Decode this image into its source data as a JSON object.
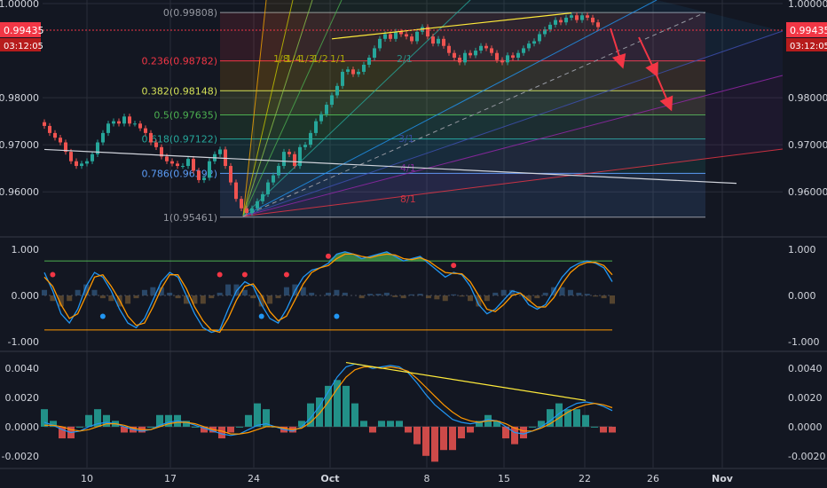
{
  "chart_data": [
    {
      "type": "candlestick",
      "title": "",
      "price_axis": {
        "ticks": [
          "1.00000",
          "0.98000",
          "0.97000",
          "0.96000"
        ],
        "range": [
          0.9525,
          1.0
        ]
      },
      "current_price": {
        "value": "0.99435",
        "countdown": "03:12:05",
        "color": "#f23645"
      },
      "time_axis": {
        "labels": [
          "10",
          "17",
          "24",
          "Oct",
          "8",
          "15",
          "22",
          "26",
          "Nov"
        ]
      },
      "series": [
        {
          "name": "Price (approx. close)",
          "values": [
            0.974,
            0.9725,
            0.9715,
            0.9705,
            0.9685,
            0.9665,
            0.9655,
            0.966,
            0.9665,
            0.968,
            0.9705,
            0.9725,
            0.9745,
            0.975,
            0.9745,
            0.976,
            0.9745,
            0.9745,
            0.9735,
            0.9725,
            0.9705,
            0.9695,
            0.9675,
            0.9665,
            0.966,
            0.9655,
            0.9655,
            0.967,
            0.9645,
            0.9625,
            0.963,
            0.9665,
            0.968,
            0.969,
            0.9655,
            0.962,
            0.9585,
            0.9565,
            0.9555,
            0.9565,
            0.958,
            0.9595,
            0.962,
            0.9635,
            0.9655,
            0.9685,
            0.968,
            0.9655,
            0.9695,
            0.97,
            0.9725,
            0.975,
            0.9765,
            0.9785,
            0.9805,
            0.9825,
            0.9855,
            0.986,
            0.985,
            0.9855,
            0.987,
            0.9885,
            0.9905,
            0.9925,
            0.9935,
            0.9925,
            0.994,
            0.9935,
            0.993,
            0.992,
            0.994,
            0.995,
            0.993,
            0.9915,
            0.9925,
            0.991,
            0.9895,
            0.9885,
            0.9875,
            0.9895,
            0.989,
            0.99,
            0.991,
            0.9905,
            0.9895,
            0.988,
            0.9875,
            0.989,
            0.9885,
            0.9895,
            0.9905,
            0.9915,
            0.992,
            0.9935,
            0.9945,
            0.9955,
            0.9965,
            0.996,
            0.997,
            0.9975,
            0.9965,
            0.9975,
            0.997,
            0.996,
            0.995
          ]
        }
      ],
      "trendlines": [
        {
          "name": "upper-divergence",
          "from": [
            54,
            0.9925
          ],
          "to": [
            99,
            0.998
          ],
          "color": "#ffeb3b"
        },
        {
          "name": "long-trend",
          "from": [
            0,
            0.969
          ],
          "to": [
            130,
            0.9618
          ],
          "color": "#d1d4dc"
        }
      ],
      "fibonacci_retracement": {
        "levels": [
          {
            "label": "0(0.99808)",
            "value": 0.99808,
            "color": "#9598a1"
          },
          {
            "label": "0.236(0.98782)",
            "value": 0.98782,
            "color": "#f23645"
          },
          {
            "label": "0.382(0.98148)",
            "value": 0.98148,
            "color": "#d4e157"
          },
          {
            "label": "0.5(0.97635)",
            "value": 0.97635,
            "color": "#4caf50"
          },
          {
            "label": "0.618(0.97122)",
            "value": 0.97122,
            "color": "#26a69a"
          },
          {
            "label": "0.786(0.96392)",
            "value": 0.96392,
            "color": "#5b9cf6"
          },
          {
            "label": "1(0.95461)",
            "value": 0.95461,
            "color": "#9598a1"
          }
        ]
      },
      "gann_fan_labels": [
        "1/8",
        "1/4",
        "1/3",
        "1/2",
        "1/1",
        "2/1",
        "3/1",
        "4/1",
        "8/1"
      ],
      "forecast_arrows": 3
    },
    {
      "type": "line",
      "title": "",
      "axis": {
        "ticks": [
          "1.000",
          "0.000",
          "-1.000"
        ],
        "range": [
          -1.1,
          1.1
        ]
      },
      "levels": [
        0.75,
        -0.75
      ],
      "series": [
        {
          "name": "fast",
          "color": "#2196f3",
          "values": [
            0.5,
            0.1,
            -0.4,
            -0.6,
            -0.3,
            0.2,
            0.5,
            0.4,
            0.1,
            -0.3,
            -0.6,
            -0.7,
            -0.5,
            -0.1,
            0.3,
            0.5,
            0.4,
            0.0,
            -0.4,
            -0.7,
            -0.8,
            -0.75,
            -0.3,
            0.1,
            0.3,
            0.2,
            -0.2,
            -0.5,
            -0.6,
            -0.3,
            0.1,
            0.4,
            0.55,
            0.6,
            0.7,
            0.9,
            0.95,
            0.9,
            0.8,
            0.85,
            0.9,
            0.95,
            0.85,
            0.75,
            0.8,
            0.85,
            0.7,
            0.55,
            0.4,
            0.5,
            0.45,
            0.2,
            -0.2,
            -0.4,
            -0.3,
            -0.1,
            0.1,
            0.05,
            -0.2,
            -0.3,
            -0.2,
            0.1,
            0.4,
            0.6,
            0.7,
            0.75,
            0.7,
            0.6,
            0.3
          ]
        },
        {
          "name": "slow",
          "color": "#ff9800",
          "values": [
            0.4,
            0.2,
            -0.2,
            -0.5,
            -0.4,
            0.0,
            0.4,
            0.45,
            0.2,
            -0.1,
            -0.45,
            -0.65,
            -0.6,
            -0.25,
            0.15,
            0.45,
            0.45,
            0.15,
            -0.25,
            -0.55,
            -0.75,
            -0.8,
            -0.5,
            -0.1,
            0.2,
            0.25,
            0.0,
            -0.35,
            -0.55,
            -0.45,
            -0.1,
            0.25,
            0.5,
            0.6,
            0.65,
            0.8,
            0.9,
            0.9,
            0.85,
            0.82,
            0.87,
            0.9,
            0.88,
            0.8,
            0.78,
            0.82,
            0.75,
            0.62,
            0.5,
            0.48,
            0.47,
            0.3,
            0.0,
            -0.3,
            -0.35,
            -0.2,
            0.0,
            0.05,
            -0.1,
            -0.25,
            -0.25,
            -0.05,
            0.25,
            0.5,
            0.65,
            0.72,
            0.72,
            0.65,
            0.45
          ]
        }
      ],
      "signals": {
        "sell": [
          1,
          21,
          24,
          29,
          34,
          49
        ],
        "buy": [
          7,
          26,
          35
        ]
      }
    },
    {
      "type": "macd",
      "title": "",
      "axis": {
        "ticks": [
          "0.0040",
          "0.0020",
          "0.0000",
          "-0.0020"
        ],
        "range": [
          -0.0025,
          0.0048
        ]
      },
      "series": [
        {
          "name": "macd",
          "color": "#2196f3",
          "values": [
            0.0003,
            0.0001,
            -0.0002,
            -0.0004,
            -0.0003,
            0.0,
            0.0002,
            0.0003,
            0.0002,
            0.0,
            -0.0002,
            -0.0003,
            -0.0002,
            0.0001,
            0.0003,
            0.0004,
            0.0003,
            0.0001,
            -0.0001,
            -0.0003,
            -0.0005,
            -0.0006,
            -0.0005,
            -0.0002,
            0.0001,
            0.0002,
            0.0,
            -0.0002,
            -0.0003,
            0.0,
            0.0006,
            0.0014,
            0.0024,
            0.0034,
            0.0041,
            0.0043,
            0.0042,
            0.004,
            0.0041,
            0.0042,
            0.0041,
            0.0037,
            0.003,
            0.0022,
            0.0015,
            0.001,
            0.0005,
            0.0003,
            0.0002,
            0.0003,
            0.0005,
            0.0004,
            0.0,
            -0.0004,
            -0.0005,
            -0.0003,
            0.0,
            0.0004,
            0.0009,
            0.0013,
            0.0016,
            0.0017,
            0.0016,
            0.0014,
            0.0011
          ]
        },
        {
          "name": "signal",
          "color": "#ff9800",
          "values": [
            0.0001,
            0.0001,
            0.0,
            -0.0002,
            -0.0003,
            -0.0002,
            0.0,
            0.0002,
            0.0002,
            0.0001,
            -0.0001,
            -0.0002,
            -0.0002,
            0.0,
            0.0002,
            0.0003,
            0.0003,
            0.0002,
            0.0,
            -0.0002,
            -0.0003,
            -0.0005,
            -0.0005,
            -0.0004,
            -0.0002,
            0.0,
            0.0,
            -0.0001,
            -0.0002,
            -0.0001,
            0.0003,
            0.0009,
            0.0017,
            0.0026,
            0.0034,
            0.0039,
            0.0041,
            0.0041,
            0.004,
            0.0041,
            0.004,
            0.0038,
            0.0033,
            0.0027,
            0.0021,
            0.0015,
            0.001,
            0.0006,
            0.0004,
            0.0003,
            0.0004,
            0.0004,
            0.0002,
            -0.0001,
            -0.0003,
            -0.0003,
            -0.0001,
            0.0002,
            0.0006,
            0.001,
            0.0013,
            0.0015,
            0.0016,
            0.0015,
            0.0013
          ]
        }
      ],
      "trendline": {
        "from": [
          34,
          0.0044
        ],
        "to": [
          61,
          0.0018
        ],
        "color": "#ffeb3b"
      }
    }
  ]
}
